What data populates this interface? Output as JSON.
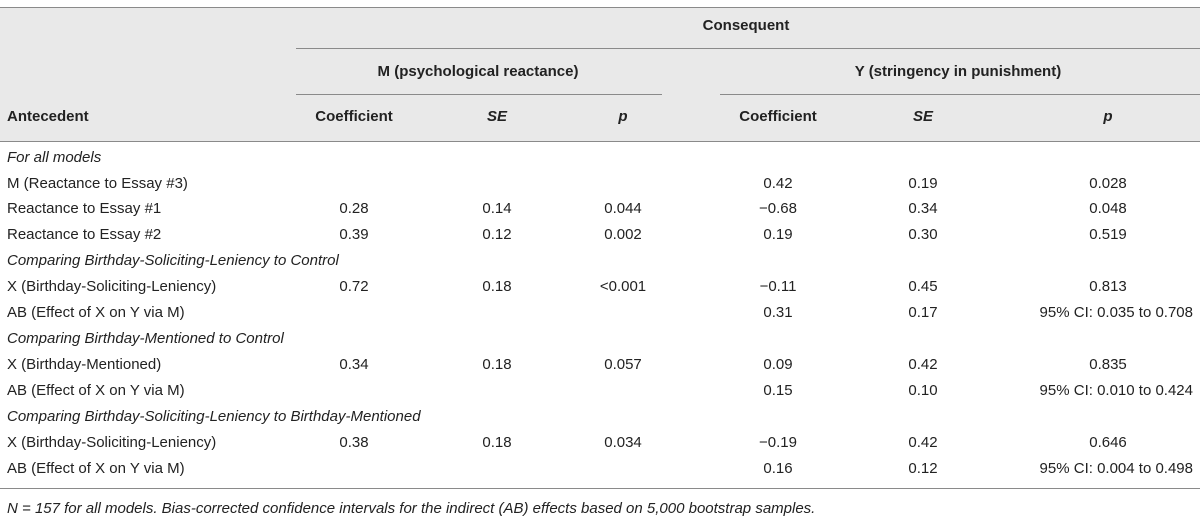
{
  "header": {
    "consequent": "Consequent",
    "group_m": "M (psychological reactance)",
    "group_y": "Y (stringency in punishment)",
    "antecedent": "Antecedent",
    "m_coefficient": "Coefficient",
    "m_se": "SE",
    "m_p": "p",
    "y_coefficient": "Coefficient",
    "y_se": "SE",
    "y_p": "p"
  },
  "sections": [
    {
      "title": "For all models",
      "rows": [
        {
          "antecedent": "M (Reactance to Essay #3)",
          "m_coef": "",
          "m_se": "",
          "m_p": "",
          "y_coef": "0.42",
          "y_se": "0.19",
          "y_p": "0.028"
        },
        {
          "antecedent": "Reactance to Essay #1",
          "m_coef": "0.28",
          "m_se": "0.14",
          "m_p": "0.044",
          "y_coef": "−0.68",
          "y_se": "0.34",
          "y_p": "0.048"
        },
        {
          "antecedent": "Reactance to Essay #2",
          "m_coef": "0.39",
          "m_se": "0.12",
          "m_p": "0.002",
          "y_coef": "0.19",
          "y_se": "0.30",
          "y_p": "0.519"
        }
      ]
    },
    {
      "title": "Comparing Birthday-Soliciting-Leniency to Control",
      "rows": [
        {
          "antecedent": "X (Birthday-Soliciting-Leniency)",
          "m_coef": "0.72",
          "m_se": "0.18",
          "m_p": "<0.001",
          "y_coef": "−0.11",
          "y_se": "0.45",
          "y_p": "0.813"
        },
        {
          "antecedent": "AB (Effect of X on Y via M)",
          "m_coef": "",
          "m_se": "",
          "m_p": "",
          "y_coef": "0.31",
          "y_se": "0.17",
          "y_p": "95% CI: 0.035 to 0.708"
        }
      ]
    },
    {
      "title": "Comparing Birthday-Mentioned to Control",
      "rows": [
        {
          "antecedent": "X (Birthday-Mentioned)",
          "m_coef": "0.34",
          "m_se": "0.18",
          "m_p": "0.057",
          "y_coef": "0.09",
          "y_se": "0.42",
          "y_p": "0.835"
        },
        {
          "antecedent": "AB (Effect of X on Y via M)",
          "m_coef": "",
          "m_se": "",
          "m_p": "",
          "y_coef": "0.15",
          "y_se": "0.10",
          "y_p": "95% CI: 0.010 to 0.424"
        }
      ]
    },
    {
      "title": "Comparing Birthday-Soliciting-Leniency to Birthday-Mentioned",
      "rows": [
        {
          "antecedent": "X (Birthday-Soliciting-Leniency)",
          "m_coef": "0.38",
          "m_se": "0.18",
          "m_p": "0.034",
          "y_coef": "−0.19",
          "y_se": "0.42",
          "y_p": "0.646"
        },
        {
          "antecedent": "AB (Effect of X on Y via M)",
          "m_coef": "",
          "m_se": "",
          "m_p": "",
          "y_coef": "0.16",
          "y_se": "0.12",
          "y_p": "95% CI: 0.004 to 0.498"
        }
      ]
    }
  ],
  "footnote": {
    "n_label": "N",
    "text": " = 157 for all models. Bias-corrected confidence intervals for the indirect (AB) effects based on 5,000 bootstrap samples."
  }
}
